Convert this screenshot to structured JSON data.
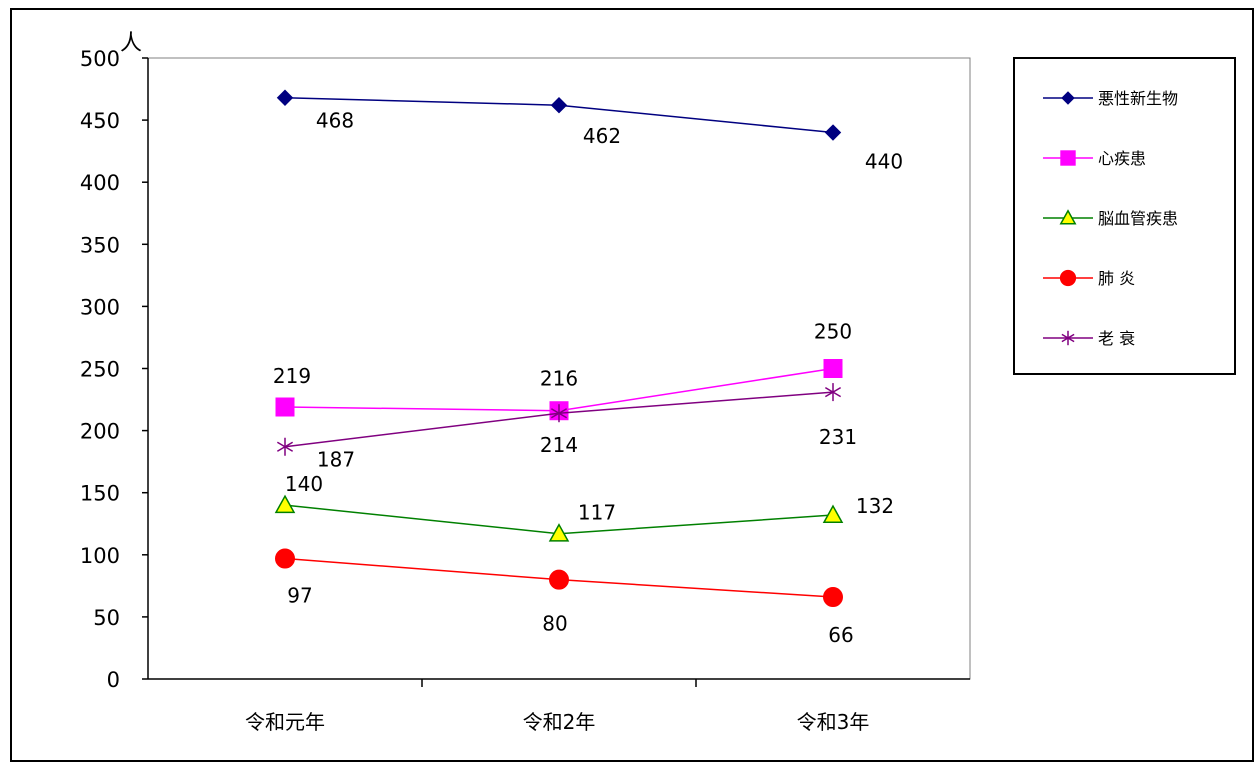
{
  "chart_data": {
    "type": "line",
    "categories": [
      "令和元年",
      "令和2年",
      "令和3年"
    ],
    "ylabel": "人",
    "ylim": [
      0,
      500
    ],
    "yticks": [
      0,
      50,
      100,
      150,
      200,
      250,
      300,
      350,
      400,
      450,
      500
    ],
    "grid": false,
    "legend_position": "right",
    "series": [
      {
        "name": "悪性新生物",
        "values": [
          468,
          462,
          440
        ],
        "color": "#000080",
        "marker": "diamond"
      },
      {
        "name": "心疾患",
        "values": [
          219,
          216,
          250
        ],
        "color": "#ff00ff",
        "marker": "square"
      },
      {
        "name": "脳血管疾患",
        "values": [
          140,
          117,
          132
        ],
        "color": "#008000",
        "marker": "triangle",
        "marker_fill": "#ffff00"
      },
      {
        "name": "肺 炎",
        "values": [
          97,
          80,
          66
        ],
        "color": "#ff0000",
        "marker": "circle"
      },
      {
        "name": "老 衰",
        "values": [
          187,
          214,
          231
        ],
        "color": "#800080",
        "marker": "star"
      }
    ]
  }
}
